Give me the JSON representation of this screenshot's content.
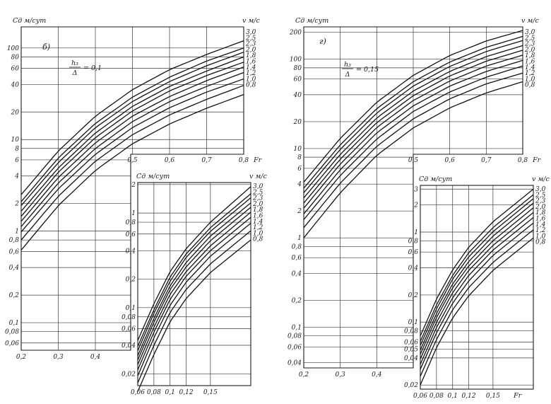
{
  "chart_data": [
    {
      "type": "line",
      "panel": "б)",
      "chart": "main",
      "ylabel": "Cд м/сут",
      "series_label": "v м/с",
      "xlabel": "Fr",
      "parameter": {
        "num": "h₃",
        "den": "Δ",
        "value": "= 0,1"
      },
      "yscale": "log",
      "ylim": [
        0.05,
        170
      ],
      "xlim": [
        0.2,
        0.8
      ],
      "xticks": [
        {
          "v": 0.5,
          "label": "0,5"
        },
        {
          "v": 0.6,
          "label": "0,6"
        },
        {
          "v": 0.7,
          "label": "0,7"
        },
        {
          "v": 0.8,
          "label": "0,8"
        }
      ],
      "xticks_lower": [
        {
          "v": 0.2,
          "label": "0,2"
        },
        {
          "v": 0.3,
          "label": "0,3"
        },
        {
          "v": 0.4,
          "label": "0,4"
        }
      ],
      "yticks": [
        {
          "v": 100,
          "label": "100"
        },
        {
          "v": 80,
          "label": "80"
        },
        {
          "v": 60,
          "label": "60"
        },
        {
          "v": 40,
          "label": "40"
        },
        {
          "v": 20,
          "label": "20"
        },
        {
          "v": 10,
          "label": "10"
        },
        {
          "v": 8,
          "label": "8"
        },
        {
          "v": 6,
          "label": "6"
        },
        {
          "v": 4,
          "label": "4"
        },
        {
          "v": 2,
          "label": "2"
        },
        {
          "v": 1,
          "label": "1"
        },
        {
          "v": 0.8,
          "label": "0,8"
        },
        {
          "v": 0.6,
          "label": "0,6"
        },
        {
          "v": 0.4,
          "label": "0,4"
        },
        {
          "v": 0.2,
          "label": "0,2"
        },
        {
          "v": 0.1,
          "label": "0,1"
        },
        {
          "v": 0.08,
          "label": "0,08"
        },
        {
          "v": 0.06,
          "label": "0,06"
        }
      ],
      "x": [
        0.2,
        0.3,
        0.4,
        0.5,
        0.6,
        0.7,
        0.8
      ],
      "series": [
        {
          "name": "3,0",
          "values": [
            2.5,
            7.5,
            18,
            35,
            58,
            85,
            120
          ]
        },
        {
          "name": "2,5",
          "values": [
            2.1,
            6.3,
            15,
            29,
            48,
            72,
            100
          ]
        },
        {
          "name": "2,3",
          "values": [
            1.9,
            5.6,
            13.5,
            26,
            43,
            64,
            90
          ]
        },
        {
          "name": "2,0",
          "values": [
            1.65,
            4.9,
            11.8,
            23,
            38,
            56,
            80
          ]
        },
        {
          "name": "1,8",
          "values": [
            1.45,
            4.4,
            10.5,
            20.5,
            34,
            50,
            70
          ]
        },
        {
          "name": "1,6",
          "values": [
            1.28,
            3.85,
            9.2,
            18,
            29.5,
            44,
            62
          ]
        },
        {
          "name": "1,4",
          "values": [
            1.12,
            3.35,
            8.0,
            15.7,
            26,
            38,
            54
          ]
        },
        {
          "name": "1,2",
          "values": [
            0.98,
            2.9,
            6.9,
            13.5,
            22.3,
            33,
            46
          ]
        },
        {
          "name": "1,0",
          "values": [
            0.8,
            2.4,
            5.8,
            11.3,
            18.6,
            27.5,
            39
          ]
        },
        {
          "name": "0,8",
          "values": [
            0.62,
            1.9,
            4.6,
            9.0,
            14.8,
            22,
            31
          ]
        }
      ]
    },
    {
      "type": "line",
      "panel": "б)",
      "chart": "inset",
      "ylabel": "Cд м/сут",
      "series_label": "v м/с",
      "yscale": "log",
      "ylim": [
        0.015,
        2.1
      ],
      "xlim": [
        0.06,
        0.2
      ],
      "xticks": [
        {
          "v": 0.06,
          "label": "0,06"
        },
        {
          "v": 0.08,
          "label": "0,08"
        },
        {
          "v": 0.1,
          "label": "0,1"
        },
        {
          "v": 0.12,
          "label": "0,12"
        },
        {
          "v": 0.15,
          "label": "0,15"
        }
      ],
      "yticks": [
        {
          "v": 2,
          "label": "2"
        },
        {
          "v": 1,
          "label": "1"
        },
        {
          "v": 0.8,
          "label": "0,8"
        },
        {
          "v": 0.6,
          "label": "0,6"
        },
        {
          "v": 0.4,
          "label": "0,4"
        },
        {
          "v": 0.2,
          "label": "0,2"
        },
        {
          "v": 0.1,
          "label": "0,1"
        },
        {
          "v": 0.08,
          "label": "0,08"
        },
        {
          "v": 0.06,
          "label": "0,06"
        },
        {
          "v": 0.04,
          "label": "0,04"
        },
        {
          "v": 0.02,
          "label": "0,02"
        }
      ],
      "x": [
        0.06,
        0.08,
        0.1,
        0.12,
        0.15,
        0.2
      ],
      "series": [
        {
          "name": "3,0",
          "values": [
            0.045,
            0.11,
            0.24,
            0.42,
            0.8,
            1.9
          ]
        },
        {
          "name": "2,5",
          "values": [
            0.039,
            0.095,
            0.21,
            0.37,
            0.7,
            1.6
          ]
        },
        {
          "name": "2,3",
          "values": [
            0.035,
            0.087,
            0.19,
            0.34,
            0.64,
            1.45
          ]
        },
        {
          "name": "2,0",
          "values": [
            0.031,
            0.077,
            0.17,
            0.3,
            0.57,
            1.28
          ]
        },
        {
          "name": "1,8",
          "values": [
            0.028,
            0.07,
            0.155,
            0.27,
            0.51,
            1.15
          ]
        },
        {
          "name": "1,6",
          "values": [
            0.025,
            0.062,
            0.138,
            0.24,
            0.45,
            1.02
          ]
        },
        {
          "name": "1,4",
          "values": [
            0.022,
            0.055,
            0.122,
            0.215,
            0.4,
            0.9
          ]
        },
        {
          "name": "1,2",
          "values": [
            0.019,
            0.048,
            0.106,
            0.186,
            0.35,
            0.78
          ]
        },
        {
          "name": "1,0",
          "values": [
            0.016,
            0.04,
            0.089,
            0.156,
            0.29,
            0.65
          ]
        },
        {
          "name": "0,8",
          "values": [
            0.013,
            0.032,
            0.071,
            0.125,
            0.235,
            0.52
          ]
        }
      ]
    },
    {
      "type": "line",
      "panel": "г)",
      "chart": "main",
      "ylabel": "Cд м/сут",
      "series_label": "v м/с",
      "xlabel": "Fr",
      "parameter": {
        "num": "h₃",
        "den": "Δ",
        "value": "= 0,15"
      },
      "yscale": "log",
      "ylim": [
        0.035,
        230
      ],
      "xlim": [
        0.2,
        0.8
      ],
      "xticks": [
        {
          "v": 0.5,
          "label": "0,5"
        },
        {
          "v": 0.6,
          "label": "0,6"
        },
        {
          "v": 0.7,
          "label": "0,7"
        },
        {
          "v": 0.8,
          "label": "0,8"
        }
      ],
      "xticks_lower": [
        {
          "v": 0.2,
          "label": "0,2"
        },
        {
          "v": 0.3,
          "label": "0,3"
        },
        {
          "v": 0.4,
          "label": "0,4"
        }
      ],
      "yticks": [
        {
          "v": 200,
          "label": "200"
        },
        {
          "v": 100,
          "label": "100"
        },
        {
          "v": 80,
          "label": "80"
        },
        {
          "v": 60,
          "label": "60"
        },
        {
          "v": 40,
          "label": "40"
        },
        {
          "v": 20,
          "label": "20"
        },
        {
          "v": 10,
          "label": "10"
        },
        {
          "v": 8,
          "label": "8"
        },
        {
          "v": 6,
          "label": "6"
        },
        {
          "v": 4,
          "label": "4"
        },
        {
          "v": 2,
          "label": "2"
        },
        {
          "v": 1,
          "label": "1"
        },
        {
          "v": 0.8,
          "label": "0,8"
        },
        {
          "v": 0.6,
          "label": "0,6"
        },
        {
          "v": 0.4,
          "label": "0,4"
        },
        {
          "v": 0.2,
          "label": "0,2"
        },
        {
          "v": 0.1,
          "label": "0,1"
        },
        {
          "v": 0.08,
          "label": "0,08"
        },
        {
          "v": 0.06,
          "label": "0,06"
        },
        {
          "v": 0.04,
          "label": "0,04"
        }
      ],
      "x": [
        0.2,
        0.3,
        0.4,
        0.5,
        0.6,
        0.7,
        0.8
      ],
      "series": [
        {
          "name": "3,0",
          "values": [
            4.2,
            13,
            33,
            66,
            110,
            160,
            210
          ]
        },
        {
          "name": "2,5",
          "values": [
            3.6,
            11,
            28,
            56,
            93,
            136,
            180
          ]
        },
        {
          "name": "2,3",
          "values": [
            3.2,
            9.8,
            25,
            50,
            83,
            122,
            162
          ]
        },
        {
          "name": "2,0",
          "values": [
            2.8,
            8.6,
            22,
            44,
            73,
            107,
            142
          ]
        },
        {
          "name": "1,8",
          "values": [
            2.45,
            7.6,
            19.5,
            39,
            65,
            95,
            126
          ]
        },
        {
          "name": "1,6",
          "values": [
            2.15,
            6.7,
            17.2,
            34.5,
            57,
            84,
            111
          ]
        },
        {
          "name": "1,4",
          "values": [
            1.85,
            5.8,
            15,
            30,
            50,
            73,
            97
          ]
        },
        {
          "name": "1,2",
          "values": [
            1.6,
            5.0,
            12.8,
            26,
            43,
            63,
            84
          ]
        },
        {
          "name": "1,0",
          "values": [
            1.3,
            4.1,
            10.6,
            21.5,
            36,
            53,
            70
          ]
        },
        {
          "name": "0,8",
          "values": [
            1.0,
            3.2,
            8.4,
            17,
            28.5,
            42,
            56
          ]
        }
      ]
    },
    {
      "type": "line",
      "panel": "г)",
      "chart": "inset",
      "ylabel": "Cд м/сут",
      "series_label": "v м/с",
      "xlabel": "Fr",
      "yscale": "log",
      "ylim": [
        0.018,
        3.3
      ],
      "xlim": [
        0.06,
        0.2
      ],
      "xticks": [
        {
          "v": 0.06,
          "label": "0,06"
        },
        {
          "v": 0.08,
          "label": "0,08"
        },
        {
          "v": 0.1,
          "label": "0,1"
        },
        {
          "v": 0.12,
          "label": "0,12"
        },
        {
          "v": 0.15,
          "label": "0,15"
        }
      ],
      "yticks": [
        {
          "v": 3,
          "label": "3"
        },
        {
          "v": 2,
          "label": "2"
        },
        {
          "v": 1,
          "label": "1"
        },
        {
          "v": 0.8,
          "label": "0,8"
        },
        {
          "v": 0.6,
          "label": "0,6"
        },
        {
          "v": 0.4,
          "label": "0,4"
        },
        {
          "v": 0.2,
          "label": "0,2"
        },
        {
          "v": 0.1,
          "label": "0,1"
        },
        {
          "v": 0.08,
          "label": "0,08"
        },
        {
          "v": 0.06,
          "label": "0,06"
        },
        {
          "v": 0.05,
          "label": "0,05"
        },
        {
          "v": 0.04,
          "label": "0,04"
        },
        {
          "v": 0.02,
          "label": "0,02"
        }
      ],
      "x": [
        0.06,
        0.08,
        0.1,
        0.12,
        0.15,
        0.2
      ],
      "series": [
        {
          "name": "3,0",
          "values": [
            0.07,
            0.18,
            0.38,
            0.68,
            1.3,
            3.0
          ]
        },
        {
          "name": "2,5",
          "values": [
            0.061,
            0.155,
            0.33,
            0.59,
            1.12,
            2.6
          ]
        },
        {
          "name": "2,3",
          "values": [
            0.055,
            0.14,
            0.3,
            0.53,
            1.01,
            2.35
          ]
        },
        {
          "name": "2,0",
          "values": [
            0.049,
            0.124,
            0.265,
            0.47,
            0.9,
            2.1
          ]
        },
        {
          "name": "1,8",
          "values": [
            0.044,
            0.112,
            0.24,
            0.42,
            0.8,
            1.86
          ]
        },
        {
          "name": "1,6",
          "values": [
            0.039,
            0.099,
            0.212,
            0.375,
            0.71,
            1.65
          ]
        },
        {
          "name": "1,4",
          "values": [
            0.034,
            0.087,
            0.186,
            0.33,
            0.63,
            1.45
          ]
        },
        {
          "name": "1,2",
          "values": [
            0.03,
            0.076,
            0.162,
            0.286,
            0.55,
            1.26
          ]
        },
        {
          "name": "1,0",
          "values": [
            0.025,
            0.064,
            0.137,
            0.242,
            0.46,
            1.06
          ]
        },
        {
          "name": "0,8",
          "values": [
            0.02,
            0.052,
            0.111,
            0.196,
            0.375,
            0.86
          ]
        }
      ]
    }
  ]
}
